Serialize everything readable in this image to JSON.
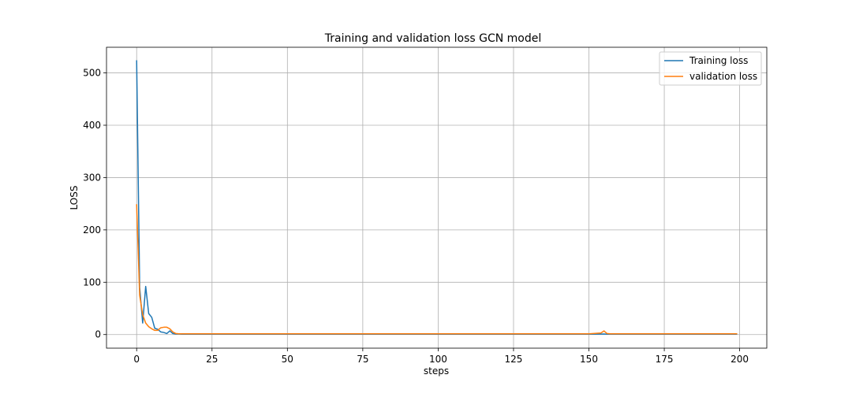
{
  "chart_data": {
    "type": "line",
    "title": "Training and validation loss GCN model",
    "xlabel": "steps",
    "ylabel": "LOSS",
    "xlim": [
      -10,
      209
    ],
    "ylim": [
      -26,
      549
    ],
    "xticks": [
      0,
      25,
      50,
      75,
      100,
      125,
      150,
      175,
      200
    ],
    "yticks": [
      0,
      100,
      200,
      300,
      400,
      500
    ],
    "grid": true,
    "legend_position": "top-right",
    "series": [
      {
        "name": "Training loss",
        "color": "#1f77b4",
        "x": [
          0,
          1,
          2,
          3,
          4,
          5,
          6,
          7,
          8,
          9,
          10,
          11,
          12,
          13,
          14,
          15,
          20,
          30,
          50,
          75,
          100,
          125,
          150,
          155,
          156,
          157,
          160,
          175,
          199
        ],
        "y": [
          523,
          90,
          22,
          92,
          40,
          33,
          12,
          10,
          5,
          4,
          2,
          7,
          2,
          1,
          1,
          0.8,
          0.8,
          0.8,
          0.8,
          0.8,
          0.8,
          0.8,
          0.8,
          1,
          0.8,
          0.8,
          0.8,
          0.8,
          0.8
        ]
      },
      {
        "name": "validation loss",
        "color": "#ff7f0e",
        "x": [
          0,
          1,
          2,
          3,
          4,
          5,
          6,
          7,
          8,
          9,
          10,
          11,
          12,
          13,
          14,
          15,
          20,
          30,
          50,
          75,
          100,
          125,
          150,
          154,
          155,
          156,
          157,
          160,
          175,
          199
        ],
        "y": [
          248,
          75,
          38,
          22,
          15,
          11,
          8,
          8,
          13,
          14,
          14,
          11,
          5,
          2,
          1.5,
          1.5,
          1.5,
          1.5,
          1.5,
          1.5,
          1.5,
          1.5,
          1.5,
          3,
          7,
          2,
          1.5,
          1.5,
          1.5,
          1.5
        ]
      }
    ]
  }
}
